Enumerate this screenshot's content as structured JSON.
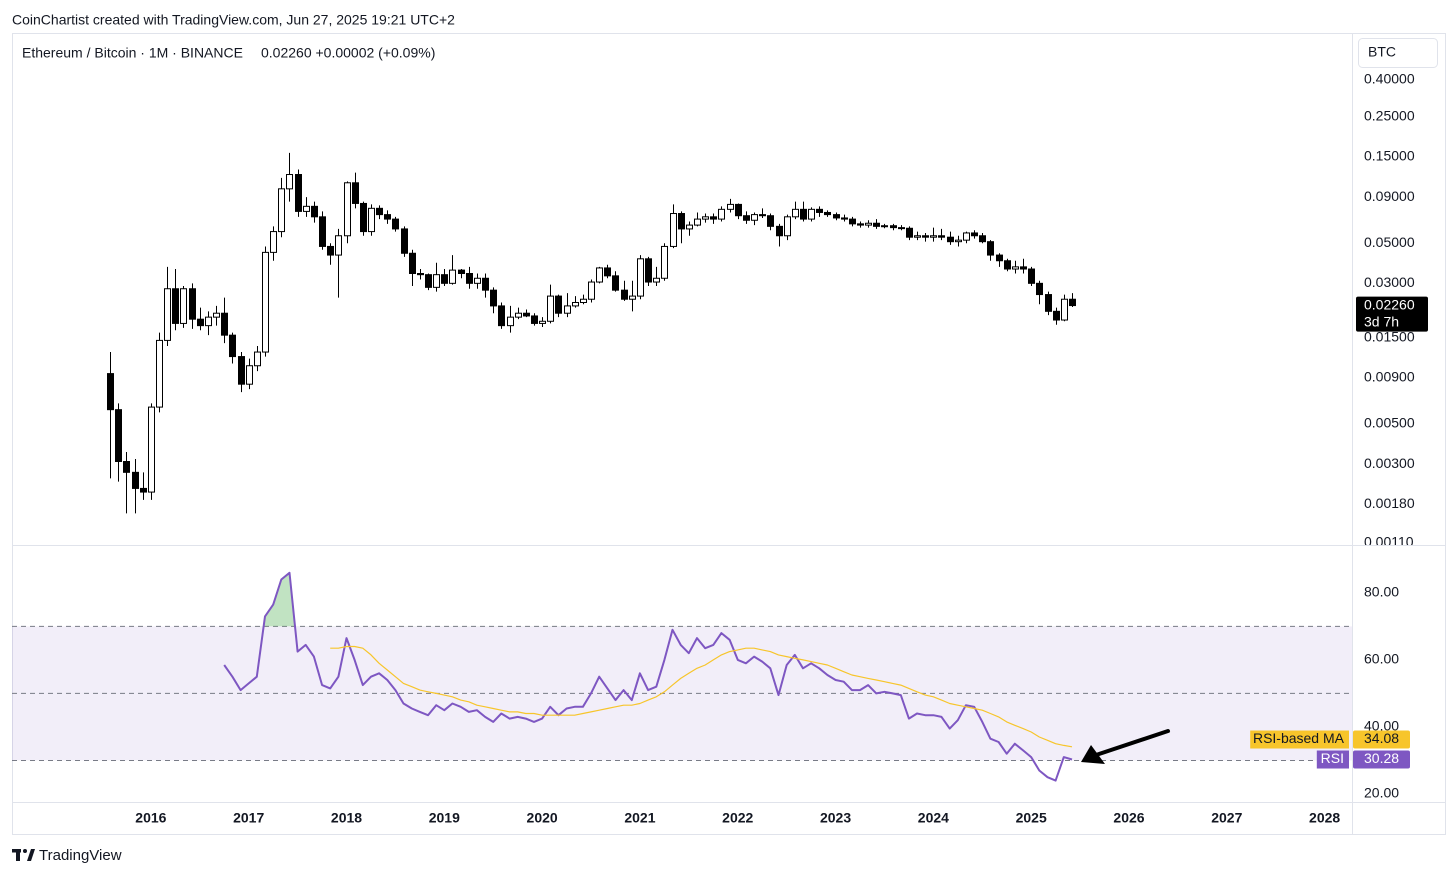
{
  "attribution": "CoinChartist created with TradingView.com, Jun 27, 2025 19:21 UTC+2",
  "footer": "TradingView",
  "chart_data": [
    {
      "type": "candlestick",
      "title": "Ethereum / Bitcoin · 1M · BINANCE",
      "legend_values": "0.02260  +0.00002 (+0.09%)",
      "y_unit": "BTC",
      "last_value_label": "0.02260",
      "countdown": "3d 7h",
      "log_scale": true,
      "up_color": "#ffffff",
      "down_color": "#000000",
      "border_color": "#000000",
      "xlim": [
        2014.58,
        2028.28
      ],
      "ylim": [
        0.00107,
        0.728
      ],
      "yticks": [
        {
          "value": 0.4,
          "label": "0.40000"
        },
        {
          "value": 0.25,
          "label": "0.25000"
        },
        {
          "value": 0.15,
          "label": "0.15000"
        },
        {
          "value": 0.09,
          "label": "0.09000"
        },
        {
          "value": 0.05,
          "label": "0.05000"
        },
        {
          "value": 0.03,
          "label": "0.03000"
        },
        {
          "value": 0.015,
          "label": "0.01500"
        },
        {
          "value": 0.009,
          "label": "0.00900"
        },
        {
          "value": 0.005,
          "label": "0.00500"
        },
        {
          "value": 0.003,
          "label": "0.00300"
        },
        {
          "value": 0.0018,
          "label": "0.00180"
        },
        {
          "value": 0.0011,
          "label": "0.00110"
        }
      ],
      "x": [
        2015.583,
        2015.667,
        2015.75,
        2015.833,
        2015.917,
        2016,
        2016.083,
        2016.167,
        2016.25,
        2016.333,
        2016.417,
        2016.5,
        2016.583,
        2016.667,
        2016.75,
        2016.833,
        2016.917,
        2017,
        2017.083,
        2017.167,
        2017.25,
        2017.333,
        2017.417,
        2017.5,
        2017.583,
        2017.667,
        2017.75,
        2017.833,
        2017.917,
        2018,
        2018.083,
        2018.167,
        2018.25,
        2018.333,
        2018.417,
        2018.5,
        2018.583,
        2018.667,
        2018.75,
        2018.833,
        2018.917,
        2019,
        2019.083,
        2019.167,
        2019.25,
        2019.333,
        2019.417,
        2019.5,
        2019.583,
        2019.667,
        2019.75,
        2019.833,
        2019.917,
        2020,
        2020.083,
        2020.167,
        2020.25,
        2020.333,
        2020.417,
        2020.5,
        2020.583,
        2020.667,
        2020.75,
        2020.833,
        2020.917,
        2021,
        2021.083,
        2021.167,
        2021.25,
        2021.333,
        2021.417,
        2021.5,
        2021.583,
        2021.667,
        2021.75,
        2021.833,
        2021.917,
        2022,
        2022.083,
        2022.167,
        2022.25,
        2022.333,
        2022.417,
        2022.5,
        2022.583,
        2022.667,
        2022.75,
        2022.833,
        2022.917,
        2023,
        2023.083,
        2023.167,
        2023.25,
        2023.333,
        2023.417,
        2023.5,
        2023.583,
        2023.667,
        2023.75,
        2023.833,
        2023.917,
        2024,
        2024.083,
        2024.167,
        2024.25,
        2024.333,
        2024.417,
        2024.5,
        2024.583,
        2024.667,
        2024.75,
        2024.833,
        2024.917,
        2025,
        2025.083,
        2025.167,
        2025.25,
        2025.333,
        2025.417
      ],
      "open": [
        0.0095,
        0.006,
        0.0031,
        0.0027,
        0.0022,
        0.0021,
        0.0062,
        0.0145,
        0.028,
        0.018,
        0.028,
        0.019,
        0.0175,
        0.0195,
        0.0205,
        0.0155,
        0.0118,
        0.0083,
        0.0105,
        0.0125,
        0.0445,
        0.058,
        0.1,
        0.12,
        0.075,
        0.08,
        0.07,
        0.048,
        0.043,
        0.055,
        0.108,
        0.083,
        0.058,
        0.078,
        0.072,
        0.068,
        0.06,
        0.044,
        0.034,
        0.0335,
        0.0285,
        0.0335,
        0.03,
        0.0355,
        0.034,
        0.03,
        0.032,
        0.0275,
        0.0225,
        0.0175,
        0.0195,
        0.0205,
        0.0198,
        0.018,
        0.0185,
        0.0255,
        0.0205,
        0.0225,
        0.0235,
        0.0245,
        0.0305,
        0.0365,
        0.033,
        0.0275,
        0.0245,
        0.0255,
        0.041,
        0.0305,
        0.032,
        0.048,
        0.073,
        0.06,
        0.063,
        0.068,
        0.07,
        0.068,
        0.077,
        0.082,
        0.071,
        0.067,
        0.072,
        0.071,
        0.062,
        0.055,
        0.07,
        0.077,
        0.068,
        0.077,
        0.074,
        0.072,
        0.069,
        0.068,
        0.064,
        0.063,
        0.0645,
        0.062,
        0.0625,
        0.061,
        0.0605,
        0.054,
        0.055,
        0.054,
        0.055,
        0.054,
        0.051,
        0.052,
        0.057,
        0.055,
        0.051,
        0.043,
        0.04,
        0.036,
        0.037,
        0.036,
        0.03,
        0.026,
        0.021,
        0.0188,
        0.0245
      ],
      "high": [
        0.0125,
        0.0065,
        0.0035,
        0.0032,
        0.0027,
        0.0065,
        0.016,
        0.037,
        0.036,
        0.029,
        0.03,
        0.022,
        0.021,
        0.0225,
        0.025,
        0.016,
        0.0125,
        0.0115,
        0.0135,
        0.048,
        0.062,
        0.115,
        0.158,
        0.128,
        0.09,
        0.085,
        0.075,
        0.05,
        0.06,
        0.11,
        0.123,
        0.085,
        0.082,
        0.081,
        0.076,
        0.07,
        0.062,
        0.046,
        0.036,
        0.034,
        0.039,
        0.036,
        0.043,
        0.036,
        0.037,
        0.034,
        0.034,
        0.0285,
        0.0235,
        0.0225,
        0.022,
        0.0215,
        0.0205,
        0.0195,
        0.0295,
        0.026,
        0.0265,
        0.0255,
        0.026,
        0.0315,
        0.037,
        0.038,
        0.035,
        0.031,
        0.031,
        0.043,
        0.042,
        0.037,
        0.05,
        0.082,
        0.075,
        0.066,
        0.074,
        0.073,
        0.073,
        0.08,
        0.088,
        0.083,
        0.075,
        0.074,
        0.078,
        0.073,
        0.064,
        0.072,
        0.085,
        0.085,
        0.079,
        0.08,
        0.076,
        0.074,
        0.072,
        0.07,
        0.066,
        0.067,
        0.068,
        0.064,
        0.064,
        0.063,
        0.062,
        0.058,
        0.057,
        0.061,
        0.06,
        0.058,
        0.055,
        0.058,
        0.059,
        0.057,
        0.052,
        0.044,
        0.041,
        0.04,
        0.041,
        0.037,
        0.031,
        0.027,
        0.022,
        0.026,
        0.0265
      ],
      "low": [
        0.0025,
        0.0024,
        0.0016,
        0.0016,
        0.0019,
        0.0019,
        0.0058,
        0.0135,
        0.0165,
        0.017,
        0.0168,
        0.0165,
        0.0155,
        0.0175,
        0.014,
        0.0108,
        0.0075,
        0.0078,
        0.0098,
        0.0118,
        0.04,
        0.054,
        0.085,
        0.07,
        0.07,
        0.065,
        0.046,
        0.038,
        0.025,
        0.05,
        0.078,
        0.055,
        0.055,
        0.068,
        0.064,
        0.058,
        0.042,
        0.029,
        0.0315,
        0.0275,
        0.027,
        0.029,
        0.0295,
        0.032,
        0.028,
        0.028,
        0.025,
        0.0205,
        0.0168,
        0.016,
        0.019,
        0.0195,
        0.0175,
        0.0172,
        0.018,
        0.0195,
        0.0195,
        0.022,
        0.023,
        0.0235,
        0.03,
        0.032,
        0.027,
        0.024,
        0.021,
        0.0245,
        0.029,
        0.029,
        0.031,
        0.047,
        0.05,
        0.055,
        0.062,
        0.065,
        0.064,
        0.066,
        0.074,
        0.068,
        0.064,
        0.063,
        0.069,
        0.059,
        0.048,
        0.052,
        0.068,
        0.066,
        0.066,
        0.07,
        0.07,
        0.067,
        0.066,
        0.062,
        0.061,
        0.061,
        0.06,
        0.0605,
        0.059,
        0.059,
        0.052,
        0.052,
        0.051,
        0.051,
        0.052,
        0.049,
        0.048,
        0.05,
        0.053,
        0.05,
        0.04,
        0.037,
        0.035,
        0.034,
        0.034,
        0.029,
        0.023,
        0.02,
        0.0177,
        0.0185,
        0.0222
      ],
      "close": [
        0.006,
        0.0031,
        0.0027,
        0.0022,
        0.0021,
        0.0062,
        0.0145,
        0.028,
        0.018,
        0.028,
        0.019,
        0.0175,
        0.0195,
        0.0205,
        0.0155,
        0.0118,
        0.0083,
        0.0105,
        0.0125,
        0.0445,
        0.058,
        0.1,
        0.12,
        0.075,
        0.08,
        0.07,
        0.048,
        0.043,
        0.055,
        0.108,
        0.083,
        0.058,
        0.078,
        0.072,
        0.068,
        0.06,
        0.044,
        0.034,
        0.0335,
        0.0285,
        0.0335,
        0.03,
        0.0355,
        0.034,
        0.03,
        0.032,
        0.0275,
        0.0225,
        0.0175,
        0.0195,
        0.0205,
        0.0198,
        0.018,
        0.0185,
        0.0255,
        0.0205,
        0.0225,
        0.0235,
        0.0245,
        0.0305,
        0.0365,
        0.033,
        0.0275,
        0.0245,
        0.0255,
        0.041,
        0.0305,
        0.032,
        0.048,
        0.073,
        0.06,
        0.063,
        0.068,
        0.07,
        0.068,
        0.077,
        0.082,
        0.071,
        0.067,
        0.072,
        0.071,
        0.062,
        0.055,
        0.07,
        0.077,
        0.068,
        0.077,
        0.074,
        0.072,
        0.069,
        0.068,
        0.064,
        0.063,
        0.0645,
        0.062,
        0.0625,
        0.061,
        0.0605,
        0.054,
        0.055,
        0.054,
        0.055,
        0.054,
        0.051,
        0.052,
        0.057,
        0.055,
        0.051,
        0.043,
        0.04,
        0.036,
        0.037,
        0.036,
        0.03,
        0.026,
        0.021,
        0.0188,
        0.0245,
        0.0226
      ]
    },
    {
      "type": "line",
      "xlim": [
        2014.58,
        2028.28
      ],
      "xticks": [
        2016,
        2017,
        2018,
        2019,
        2020,
        2021,
        2022,
        2023,
        2024,
        2025,
        2026,
        2027,
        2028
      ],
      "ylim": [
        17.6,
        94.3
      ],
      "yticks": [
        {
          "value": 20,
          "label": "20.00"
        },
        {
          "value": 40,
          "label": "40.00"
        },
        {
          "value": 60,
          "label": "60.00"
        },
        {
          "value": 80,
          "label": "80.00"
        }
      ],
      "bands": [
        30,
        70
      ],
      "band_color": "#7e57c2",
      "levels": [
        70,
        50,
        30
      ],
      "overbought_color": "#4caf50",
      "series": [
        {
          "name": "RSI",
          "color": "#7e57c2",
          "values": [
            null,
            null,
            null,
            null,
            null,
            null,
            null,
            null,
            null,
            null,
            null,
            null,
            null,
            null,
            58.5,
            55,
            51,
            53,
            55,
            73,
            76.5,
            84,
            86,
            62.5,
            64.5,
            61,
            52.5,
            51.5,
            55,
            66.5,
            60,
            52.5,
            55,
            56,
            54,
            51,
            47,
            45.5,
            44.5,
            43.5,
            46.5,
            45,
            47,
            46,
            44.5,
            45,
            43,
            41.5,
            44,
            42.5,
            43,
            42.5,
            41.5,
            42.5,
            46,
            43.5,
            45.5,
            46,
            46,
            50,
            55,
            51.5,
            48,
            51,
            48,
            56,
            51,
            52,
            60,
            69,
            64.5,
            62,
            66.5,
            63.5,
            64.5,
            68,
            66,
            60,
            59,
            61,
            59.5,
            57.5,
            49.5,
            58.5,
            61.5,
            57.5,
            59,
            57.5,
            55.5,
            54,
            53.5,
            51,
            51,
            52.5,
            50,
            50.5,
            50,
            49.5,
            42.5,
            44,
            43.5,
            43.5,
            43,
            39.5,
            42,
            46.5,
            46,
            41.5,
            36.5,
            35.5,
            32,
            35,
            33,
            31,
            27,
            25,
            24,
            31,
            30.28
          ]
        },
        {
          "name": "RSI-based MA",
          "color": "#f7c52b",
          "values": [
            null,
            null,
            null,
            null,
            null,
            null,
            null,
            null,
            null,
            null,
            null,
            null,
            null,
            null,
            null,
            null,
            null,
            null,
            null,
            null,
            null,
            null,
            null,
            null,
            null,
            null,
            null,
            63.5,
            63.5,
            64,
            64,
            63.5,
            61.5,
            59,
            57,
            55,
            53,
            52,
            51,
            50.5,
            50,
            49.5,
            49,
            48,
            47.5,
            46.5,
            46,
            45.5,
            45,
            44.5,
            44.5,
            44,
            44,
            43.5,
            43.5,
            43.5,
            43.5,
            43.5,
            44,
            44.5,
            45,
            45.5,
            46,
            46.5,
            46.5,
            47,
            48,
            49,
            50.5,
            52.5,
            54.5,
            56,
            57.5,
            58.5,
            60,
            61.5,
            62.5,
            63,
            63.5,
            63.5,
            63,
            62.5,
            61.5,
            61,
            60.5,
            60,
            59.5,
            59,
            58.5,
            57.5,
            56.5,
            55.5,
            55,
            54.5,
            54,
            53.5,
            53,
            52.5,
            51.5,
            50.5,
            49.5,
            49,
            48,
            47,
            46.5,
            46,
            45.5,
            45,
            44,
            43,
            41.5,
            40.5,
            39.5,
            38.5,
            37,
            36,
            35,
            34.5,
            34.08
          ]
        }
      ]
    }
  ]
}
